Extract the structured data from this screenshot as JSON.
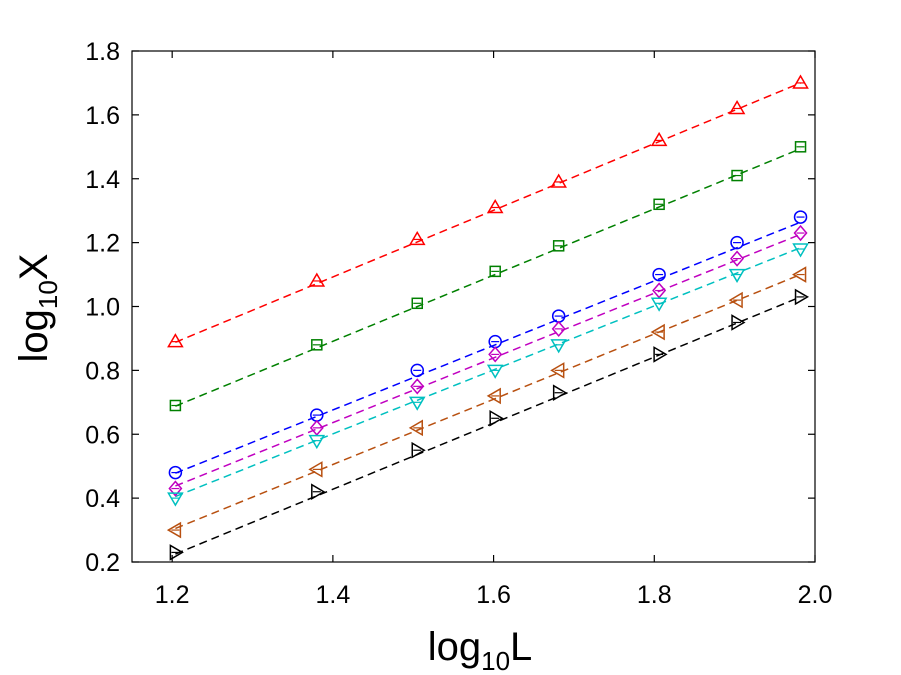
{
  "chart_data": {
    "type": "scatter",
    "xlabel": {
      "base": "log",
      "sub": "10",
      "var": "L"
    },
    "ylabel": {
      "base": "log",
      "sub": "10",
      "var": "X"
    },
    "xlim": [
      1.15,
      2.0
    ],
    "ylim": [
      0.2,
      1.8
    ],
    "xticks": [
      "1.2",
      "1.4",
      "1.6",
      "1.8",
      "2.0"
    ],
    "yticks": [
      "0.2",
      "0.4",
      "0.6",
      "0.8",
      "1.0",
      "1.2",
      "1.4",
      "1.6",
      "1.8"
    ],
    "grid": false,
    "x": [
      1.204,
      1.38,
      1.505,
      1.602,
      1.681,
      1.806,
      1.903,
      1.982
    ],
    "series": [
      {
        "name": "red-triangle-up",
        "marker": "triangle-up",
        "color": "#ff0000",
        "values": [
          0.89,
          1.08,
          1.21,
          1.31,
          1.39,
          1.52,
          1.62,
          1.7
        ],
        "fit": [
          0.888,
          1.7
        ]
      },
      {
        "name": "green-square",
        "marker": "square",
        "color": "#008000",
        "values": [
          0.69,
          0.88,
          1.01,
          1.11,
          1.19,
          1.32,
          1.41,
          1.5
        ],
        "fit": [
          0.688,
          1.494
        ]
      },
      {
        "name": "blue-circle",
        "marker": "circle",
        "color": "#0000ff",
        "values": [
          0.48,
          0.66,
          0.8,
          0.89,
          0.97,
          1.1,
          1.2,
          1.28
        ],
        "fit": [
          0.478,
          1.264
        ]
      },
      {
        "name": "magenta-diamond",
        "marker": "diamond",
        "color": "#c000c0",
        "values": [
          0.43,
          0.62,
          0.75,
          0.85,
          0.93,
          1.05,
          1.15,
          1.23
        ],
        "fit": [
          0.438,
          1.226
        ]
      },
      {
        "name": "cyan-triangle-down",
        "marker": "triangle-down",
        "color": "#00c0c0",
        "values": [
          0.4,
          0.58,
          0.7,
          0.8,
          0.88,
          1.01,
          1.1,
          1.18
        ],
        "fit": [
          0.405,
          1.184
        ]
      },
      {
        "name": "brown-triangle-left",
        "marker": "triangle-left",
        "color": "#b85010",
        "values": [
          0.3,
          0.49,
          0.62,
          0.72,
          0.8,
          0.92,
          1.02,
          1.1
        ],
        "fit": [
          0.305,
          1.1
        ]
      },
      {
        "name": "black-triangle-right",
        "marker": "triangle-right",
        "color": "#000000",
        "values": [
          0.23,
          0.42,
          0.55,
          0.65,
          0.73,
          0.85,
          0.95,
          1.03
        ],
        "fit": [
          0.225,
          1.03
        ]
      }
    ]
  }
}
